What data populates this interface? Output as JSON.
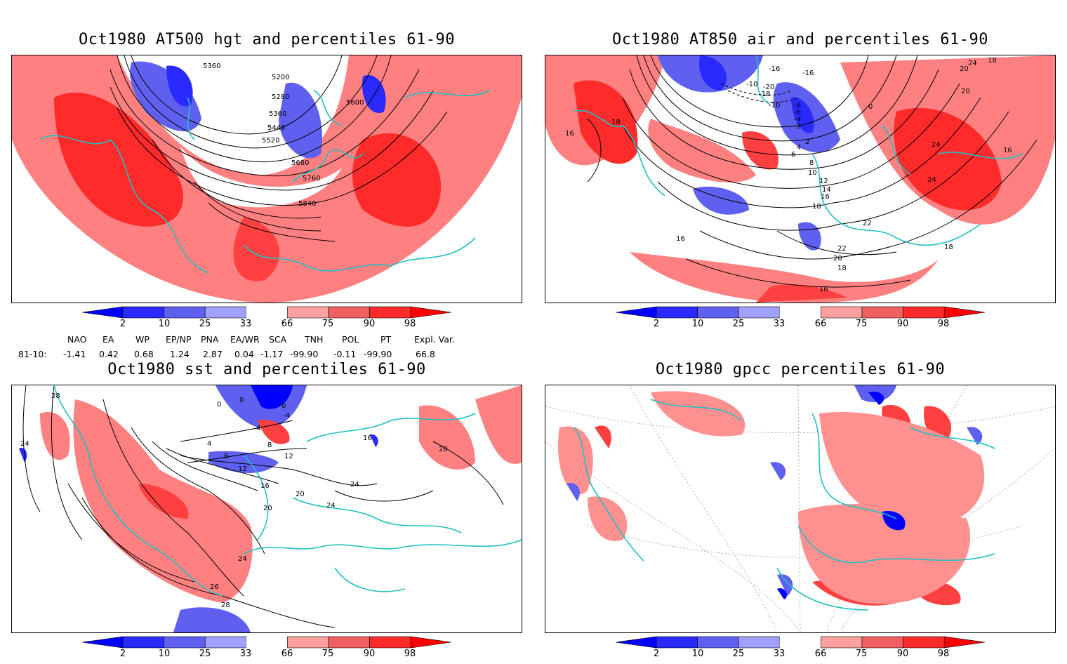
{
  "panels": [
    {
      "title": "Oct1980 AT500 hgt and percentiles 61-90",
      "contour_labels": [
        "5360",
        "5200",
        "5280",
        "5360",
        "5440",
        "5520",
        "5600",
        "5680",
        "5760",
        "5840"
      ]
    },
    {
      "title": "Oct1980 AT850 air and percentiles 61-90",
      "contour_labels": [
        "16",
        "18",
        "-16",
        "-16",
        "-10",
        "-18",
        "-20",
        "-10",
        "-8",
        "-6",
        "-4",
        "-2",
        "2",
        "4",
        "6",
        "8",
        "10",
        "12",
        "14",
        "16",
        "18",
        "20",
        "22",
        "24",
        "24",
        "16",
        "24",
        "22",
        "20",
        "18",
        "16",
        "18",
        "16",
        "0",
        "18",
        "20"
      ]
    },
    {
      "title": "Oct1980 sst and percentiles 61-90",
      "contour_labels": [
        "28",
        "24",
        "0",
        "0",
        "-4",
        "0",
        "4",
        "8",
        "4",
        "8",
        "12",
        "16",
        "16",
        "20",
        "12",
        "20",
        "24",
        "24",
        "24",
        "26",
        "28",
        "28"
      ]
    },
    {
      "title": "Oct1980 gpcc percentiles 61-90",
      "contour_labels": []
    }
  ],
  "colorbar": {
    "ticks": [
      "2",
      "10",
      "25",
      "33",
      "66",
      "75",
      "90",
      "98"
    ],
    "colors": [
      "#0000ff",
      "#2a2aff",
      "#6060f0",
      "#a0a0ff",
      "#ffffff",
      "#ffa0a0",
      "#f06060",
      "#ff2a2a",
      "#ff0000"
    ]
  },
  "indices": {
    "header": [
      "NAO",
      "EA",
      "WP",
      "EP/NP",
      "PNA",
      "EA/WR",
      "SCA",
      "TNH",
      "POL",
      "PT",
      "Expl. Var."
    ],
    "row_label": "81-10:",
    "values": [
      "-1.41",
      "0.42",
      "0.68",
      "1.24",
      "2.87",
      "0.04",
      "-1.17",
      "-99.90",
      "-0.11",
      "-99.90",
      "66.8"
    ]
  }
}
